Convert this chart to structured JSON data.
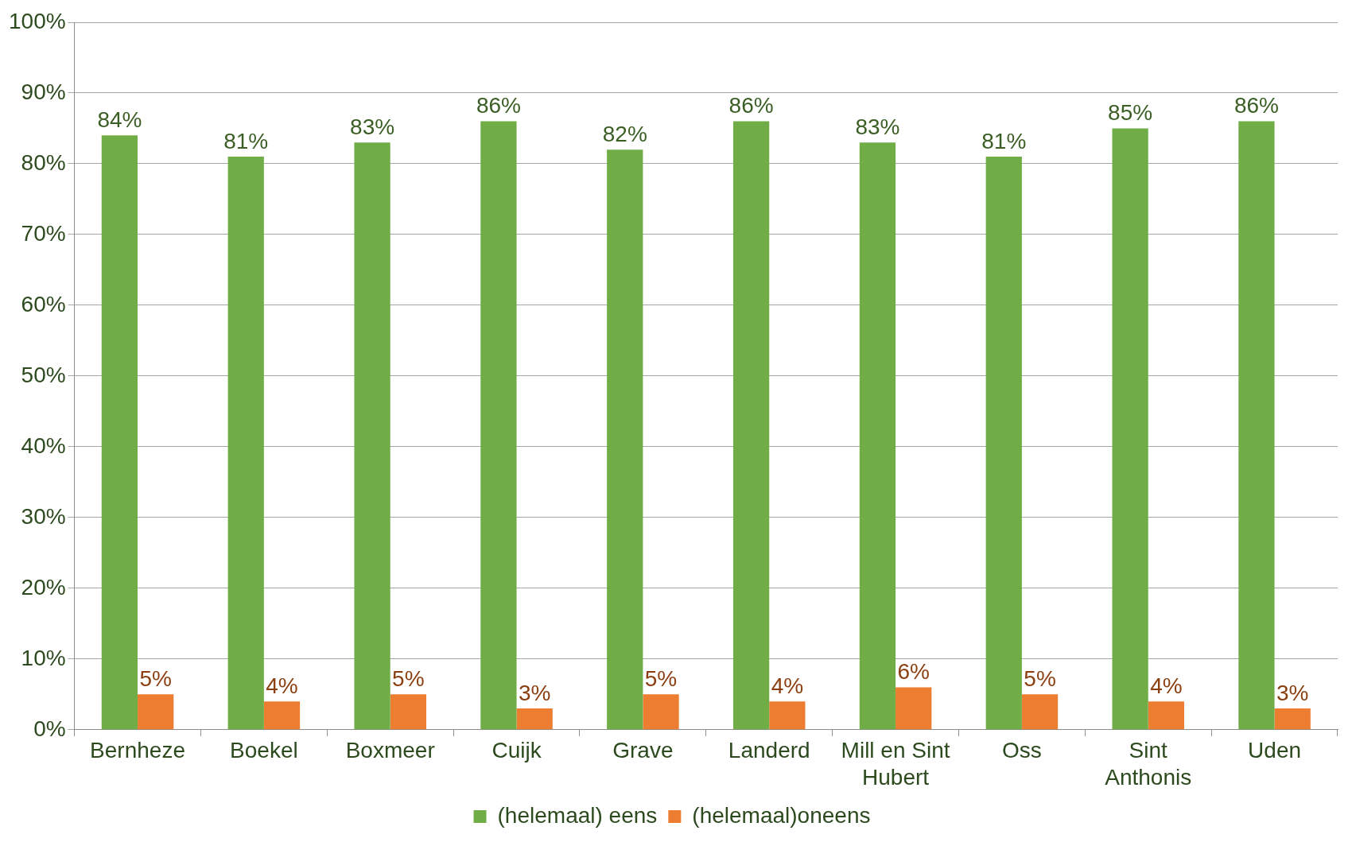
{
  "chart_data": {
    "type": "bar",
    "categories": [
      "Bernheze",
      "Boekel",
      "Boxmeer",
      "Cuijk",
      "Grave",
      "Landerd",
      "Mill en Sint Hubert",
      "Oss",
      "Sint Anthonis",
      "Uden"
    ],
    "series": [
      {
        "name": "(helemaal) eens",
        "color": "#70ad47",
        "values": [
          84,
          81,
          83,
          86,
          82,
          86,
          83,
          81,
          85,
          86
        ],
        "value_labels": [
          "84%",
          "81%",
          "83%",
          "86%",
          "82%",
          "86%",
          "83%",
          "81%",
          "85%",
          "86%"
        ]
      },
      {
        "name": "(helemaal)oneens",
        "color": "#ed7d31",
        "values": [
          5,
          4,
          5,
          3,
          5,
          4,
          6,
          5,
          4,
          3
        ],
        "value_labels": [
          "5%",
          "4%",
          "5%",
          "3%",
          "5%",
          "4%",
          "6%",
          "5%",
          "4%",
          "3%"
        ]
      }
    ],
    "ylim": [
      0,
      100
    ],
    "yticks": [
      {
        "value": 0,
        "label": "0%"
      },
      {
        "value": 10,
        "label": "10%"
      },
      {
        "value": 20,
        "label": "20%"
      },
      {
        "value": 30,
        "label": "30%"
      },
      {
        "value": 40,
        "label": "40%"
      },
      {
        "value": 50,
        "label": "50%"
      },
      {
        "value": 60,
        "label": "60%"
      },
      {
        "value": 70,
        "label": "70%"
      },
      {
        "value": 80,
        "label": "80%"
      },
      {
        "value": 90,
        "label": "90%"
      },
      {
        "value": 100,
        "label": "100%"
      }
    ],
    "grid": "y",
    "legend": "bottom"
  }
}
